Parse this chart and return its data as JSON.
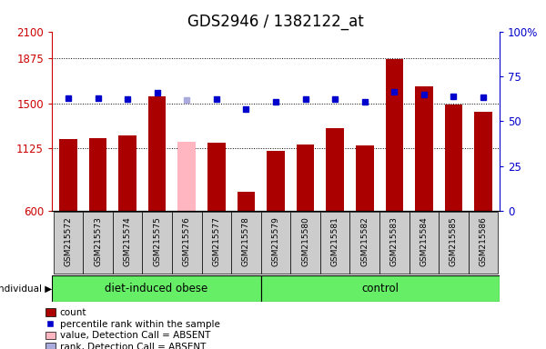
{
  "title": "GDS2946 / 1382122_at",
  "samples": [
    "GSM215572",
    "GSM215573",
    "GSM215574",
    "GSM215575",
    "GSM215576",
    "GSM215577",
    "GSM215578",
    "GSM215579",
    "GSM215580",
    "GSM215581",
    "GSM215582",
    "GSM215583",
    "GSM215584",
    "GSM215585",
    "GSM215586"
  ],
  "bar_values": [
    1200,
    1210,
    1230,
    1560,
    1180,
    1170,
    760,
    1100,
    1155,
    1295,
    1150,
    1870,
    1640,
    1490,
    1430
  ],
  "bar_colors": [
    "#aa0000",
    "#aa0000",
    "#aa0000",
    "#aa0000",
    "#ffb6c1",
    "#aa0000",
    "#aa0000",
    "#aa0000",
    "#aa0000",
    "#aa0000",
    "#aa0000",
    "#aa0000",
    "#aa0000",
    "#aa0000",
    "#aa0000"
  ],
  "dot_values": [
    1545,
    1543,
    1535,
    1590,
    1530,
    1535,
    1455,
    1510,
    1538,
    1535,
    1515,
    1595,
    1570,
    1555,
    1548
  ],
  "dot_colors": [
    "#0000cc",
    "#0000cc",
    "#0000cc",
    "#0000cc",
    "#aaaadd",
    "#0000cc",
    "#0000cc",
    "#0000cc",
    "#0000cc",
    "#0000cc",
    "#0000cc",
    "#0000cc",
    "#0000cc",
    "#0000cc",
    "#0000cc"
  ],
  "groups": [
    {
      "label": "diet-induced obese",
      "start": 0,
      "end": 7
    },
    {
      "label": "control",
      "start": 7,
      "end": 15
    }
  ],
  "group_color": "#66ee66",
  "ymin": 600,
  "ymax": 2100,
  "yticks": [
    600,
    1125,
    1500,
    1875,
    2100
  ],
  "ytick_labels": [
    "600",
    "1125",
    "1500",
    "1875",
    "2100"
  ],
  "y2ticks": [
    0,
    25,
    50,
    75,
    100
  ],
  "y2tick_labels": [
    "0",
    "25",
    "50",
    "75",
    "100%"
  ],
  "hlines": [
    1125,
    1500,
    1875
  ],
  "plot_bg": "#ffffff",
  "title_fontsize": 12,
  "left_color": "#cc0000",
  "right_color": "#0000cc",
  "bar_width": 0.6,
  "sample_box_color": "#cccccc",
  "legend_items": [
    {
      "color": "#aa0000",
      "type": "patch",
      "label": "count"
    },
    {
      "color": "#0000cc",
      "type": "square",
      "label": "percentile rank within the sample"
    },
    {
      "color": "#ffb6c1",
      "type": "patch",
      "label": "value, Detection Call = ABSENT"
    },
    {
      "color": "#aaaadd",
      "type": "patch",
      "label": "rank, Detection Call = ABSENT"
    }
  ]
}
